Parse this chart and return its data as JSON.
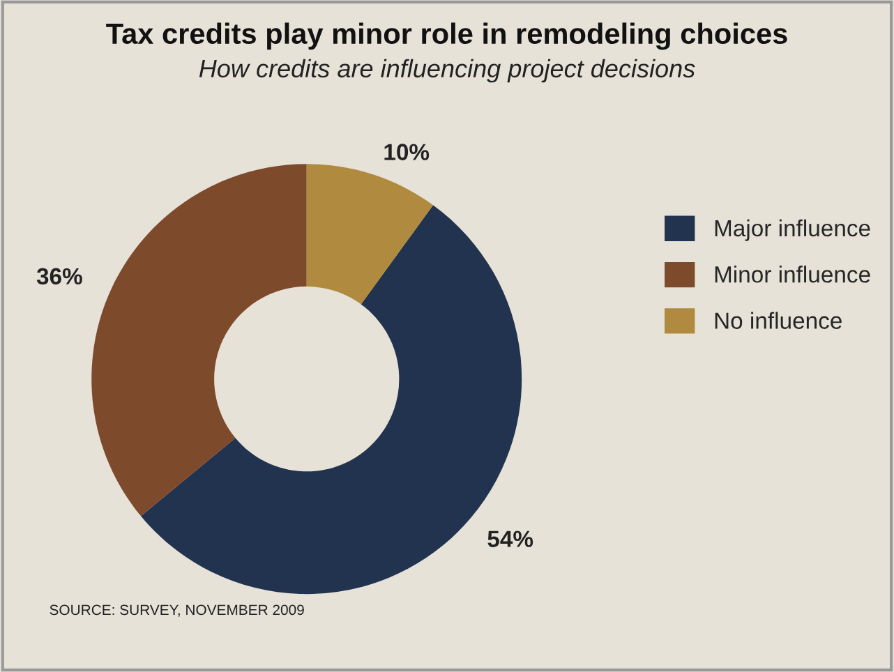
{
  "chart_data": {
    "type": "donut",
    "title": "Tax credits play minor role in remodeling choices",
    "subtitle": "How credits are influencing project decisions",
    "categories": [
      "Major influence",
      "Minor influence",
      "No influence"
    ],
    "values": [
      54,
      36,
      10
    ],
    "colors": [
      "#22334f",
      "#7e4a2c",
      "#b08a3e"
    ],
    "value_labels": [
      "54%",
      "36%",
      "10%"
    ],
    "legend": "right",
    "annotations": [
      "SOURCE: SURVEY, NOVEMBER 2009"
    ]
  }
}
